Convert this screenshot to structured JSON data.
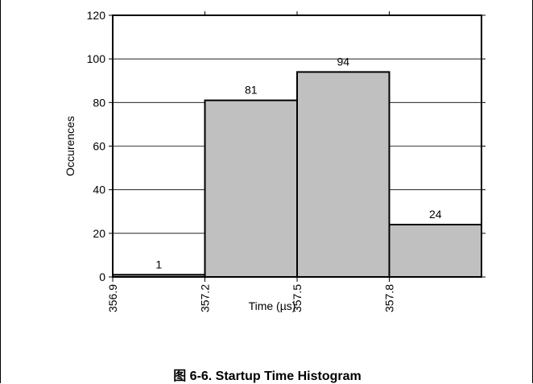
{
  "caption": "图 6-6. Startup Time Histogram",
  "chart_data": {
    "type": "bar",
    "title": "",
    "xlabel": "Time (µs)",
    "ylabel": "Occurences",
    "bin_edges": [
      356.9,
      357.2,
      357.5,
      357.8
    ],
    "values": [
      1,
      81,
      94,
      24
    ],
    "data_labels": [
      "1",
      "81",
      "94",
      "24"
    ],
    "ylim": [
      0,
      120
    ],
    "yticks": [
      0,
      20,
      40,
      60,
      80,
      100,
      120
    ],
    "grid": true,
    "colors": {
      "bar": "#c0c0c0",
      "bar_edge": "#000000"
    }
  }
}
